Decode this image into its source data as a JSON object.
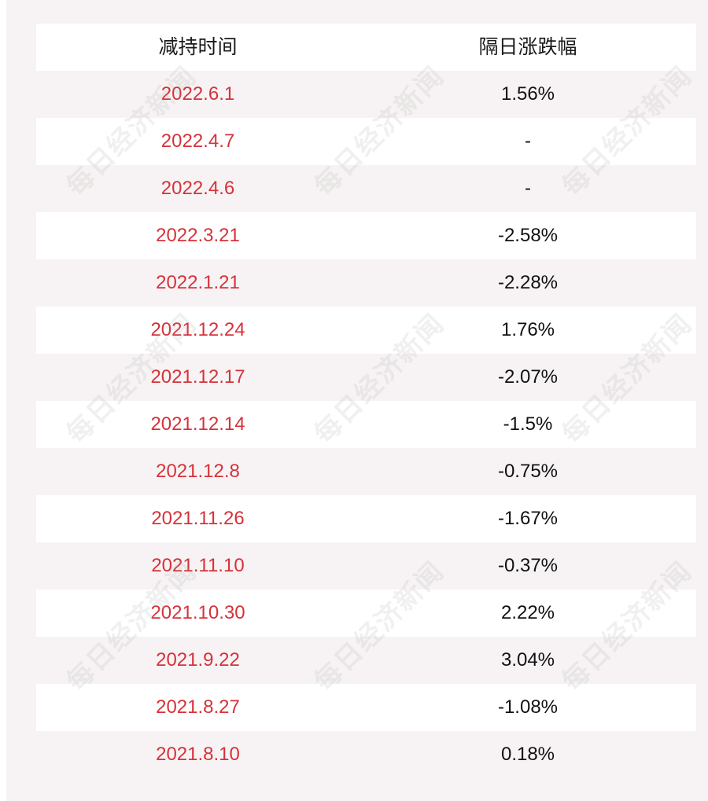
{
  "table": {
    "headers": {
      "date": "减持时间",
      "change": "隔日涨跌幅"
    },
    "rows": [
      {
        "date": "2022.6.1",
        "change": "1.56%"
      },
      {
        "date": "2022.4.7",
        "change": "-"
      },
      {
        "date": "2022.4.6",
        "change": "-"
      },
      {
        "date": "2022.3.21",
        "change": "-2.58%"
      },
      {
        "date": "2022.1.21",
        "change": "-2.28%"
      },
      {
        "date": "2021.12.24",
        "change": "1.76%"
      },
      {
        "date": "2021.12.17",
        "change": "-2.07%"
      },
      {
        "date": "2021.12.14",
        "change": "-1.5%"
      },
      {
        "date": "2021.12.8",
        "change": "-0.75%"
      },
      {
        "date": "2021.11.26",
        "change": "-1.67%"
      },
      {
        "date": "2021.11.10",
        "change": "-0.37%"
      },
      {
        "date": "2021.10.30",
        "change": "2.22%"
      },
      {
        "date": "2021.9.22",
        "change": "3.04%"
      },
      {
        "date": "2021.8.27",
        "change": "-1.08%"
      },
      {
        "date": "2021.8.10",
        "change": "0.18%"
      }
    ]
  },
  "watermark": {
    "text": "每日经济新闻"
  },
  "colors": {
    "date_text": "#d6323a",
    "change_text": "#111111",
    "panel_bg": "#f7f3f4",
    "row_white": "#ffffff"
  }
}
